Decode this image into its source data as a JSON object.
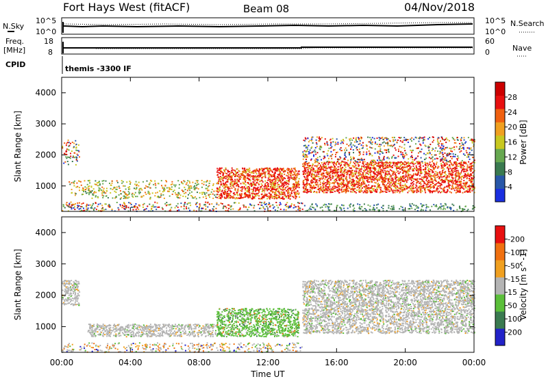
{
  "header": {
    "station": "Fort Hays West (fitACF)",
    "beam": "Beam 08",
    "date": "04/Nov/2018"
  },
  "strip_panels": {
    "nsky": {
      "label": "N.Sky",
      "tick_labels": [
        "10^5",
        "10^0"
      ],
      "right_label": "N.Search",
      "right_tick_labels": [
        "10^5",
        "10^0"
      ]
    },
    "freq": {
      "label_line1": "Freq.",
      "label_line2": "[MHz]",
      "tick_labels": [
        "18",
        "8"
      ],
      "right_label": "Nave",
      "right_tick_labels": [
        "60",
        "0"
      ]
    },
    "cpid": {
      "label": "CPID",
      "text": "themis -3300 IF"
    }
  },
  "colors": {
    "power": [
      "#1a2fe0",
      "#2857a8",
      "#3a7a50",
      "#67a850",
      "#c8c820",
      "#f0a020",
      "#f06010",
      "#e81010",
      "#cc0000"
    ],
    "velocity": [
      "#2222c8",
      "#3a7a50",
      "#5bbf3a",
      "#b4b4b4",
      "#f0a020",
      "#f07010",
      "#e81010"
    ]
  },
  "chart_data": [
    {
      "type": "heatmap",
      "name": "power",
      "ylabel": "Slant Range [km]",
      "xlabel": "",
      "x_tick_labels": [
        "00:00",
        "04:00",
        "08:00",
        "12:00",
        "16:00",
        "20:00",
        "00:00"
      ],
      "x_ticks_hours": [
        0,
        4,
        8,
        12,
        16,
        20,
        24
      ],
      "ylim": [
        180,
        4500
      ],
      "y_ticks": [
        1000,
        2000,
        3000,
        4000
      ],
      "y_tick_labels": [
        "1000",
        "2000",
        "3000",
        "4000"
      ],
      "colorbar": {
        "label": "Power [dB]",
        "ticks": [
          "4",
          "8",
          "12",
          "16",
          "20",
          "24",
          "28"
        ],
        "range": [
          0,
          32
        ]
      },
      "scatter_regions": [
        {
          "start_h": 0.0,
          "end_h": 1.0,
          "range_low": 1700,
          "range_high": 2500,
          "level": "mixed"
        },
        {
          "start_h": 0.4,
          "end_h": 1.6,
          "range_low": 700,
          "range_high": 1200,
          "level": "medium"
        },
        {
          "start_h": 1.5,
          "end_h": 9.0,
          "range_low": 600,
          "range_high": 1200,
          "level": "medium"
        },
        {
          "start_h": 9.0,
          "end_h": 13.8,
          "range_low": 600,
          "range_high": 1600,
          "level": "high"
        },
        {
          "start_h": 0.0,
          "end_h": 14.0,
          "range_low": 200,
          "range_high": 500,
          "level": "mixed"
        },
        {
          "start_h": 14.0,
          "end_h": 24.0,
          "range_low": 800,
          "range_high": 1800,
          "level": "high"
        },
        {
          "start_h": 14.0,
          "end_h": 24.0,
          "range_low": 1800,
          "range_high": 2600,
          "level": "mixed"
        },
        {
          "start_h": 14.0,
          "end_h": 24.0,
          "range_low": 200,
          "range_high": 450,
          "level": "low"
        }
      ]
    },
    {
      "type": "heatmap",
      "name": "velocity",
      "ylabel": "Slant Range [km]",
      "xlabel": "Time UT",
      "x_tick_labels": [
        "00:00",
        "04:00",
        "08:00",
        "12:00",
        "16:00",
        "20:00",
        "00:00"
      ],
      "x_ticks_hours": [
        0,
        4,
        8,
        12,
        16,
        20,
        24
      ],
      "ylim": [
        180,
        4500
      ],
      "y_ticks": [
        1000,
        2000,
        3000,
        4000
      ],
      "y_tick_labels": [
        "1000",
        "2000",
        "3000",
        "4000"
      ],
      "colorbar": {
        "label": "Velocity [m s^-1]",
        "ticks": [
          "200",
          "100",
          "50",
          "15",
          "-15",
          "-50",
          "-100",
          "-200"
        ]
      },
      "scatter_regions": [
        {
          "start_h": 0.0,
          "end_h": 1.0,
          "range_low": 1700,
          "range_high": 2500,
          "level": "grey"
        },
        {
          "start_h": 1.5,
          "end_h": 9.0,
          "range_low": 700,
          "range_high": 1100,
          "level": "grey"
        },
        {
          "start_h": 9.0,
          "end_h": 13.8,
          "range_low": 700,
          "range_high": 1600,
          "level": "green"
        },
        {
          "start_h": 0.0,
          "end_h": 14.0,
          "range_low": 200,
          "range_high": 500,
          "level": "mixed"
        },
        {
          "start_h": 14.0,
          "end_h": 24.0,
          "range_low": 800,
          "range_high": 2500,
          "level": "grey"
        }
      ]
    }
  ]
}
